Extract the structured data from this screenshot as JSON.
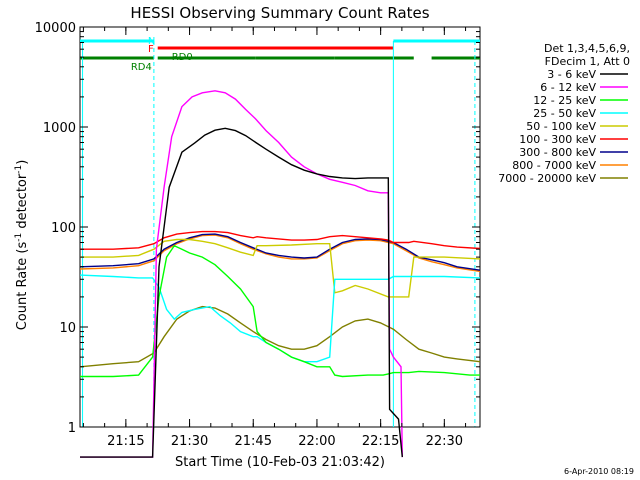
{
  "chart_data": {
    "type": "line",
    "title": "HESSI Observing Summary Count Rates",
    "xlabel": "Start Time (10-Feb-03 21:03:42)",
    "ylabel_main": "Count Rate (s",
    "ylabel_sup1": "-1",
    "ylabel_mid": " detector",
    "ylabel_sup2": "-1",
    "ylabel_end": ")",
    "footer": "6-Apr-2010 08:19",
    "y_scale": "log",
    "ylim": [
      1,
      10000
    ],
    "xlim": [
      21.07,
      22.64
    ],
    "x_ticks": [
      {
        "label": "21:15",
        "t": 21.25
      },
      {
        "label": "21:30",
        "t": 21.5
      },
      {
        "label": "21:45",
        "t": 21.75
      },
      {
        "label": "22:00",
        "t": 22.0
      },
      {
        "label": "22:15",
        "t": 22.25
      },
      {
        "label": "22:30",
        "t": 22.5
      }
    ],
    "y_ticks": [
      {
        "label": "1",
        "v": 1
      },
      {
        "label": "10",
        "v": 10
      },
      {
        "label": "100",
        "v": 100
      },
      {
        "label": "1000",
        "v": 1000
      },
      {
        "label": "10000",
        "v": 10000
      }
    ],
    "legend_header": [
      "Det 1,3,4,5,6,9,",
      "FDecim 1, Att 0"
    ],
    "legend_placement": "right",
    "series": [
      {
        "name": "3 - 6 keV",
        "color": "#000000",
        "points": [
          [
            21.07,
            0
          ],
          [
            21.355,
            0
          ],
          [
            21.38,
            40
          ],
          [
            21.42,
            250
          ],
          [
            21.47,
            560
          ],
          [
            21.52,
            690
          ],
          [
            21.56,
            830
          ],
          [
            21.6,
            930
          ],
          [
            21.64,
            970
          ],
          [
            21.68,
            920
          ],
          [
            21.72,
            820
          ],
          [
            21.76,
            700
          ],
          [
            21.8,
            600
          ],
          [
            21.85,
            500
          ],
          [
            21.9,
            420
          ],
          [
            21.95,
            370
          ],
          [
            22.0,
            340
          ],
          [
            22.05,
            320
          ],
          [
            22.1,
            310
          ],
          [
            22.15,
            305
          ],
          [
            22.2,
            310
          ],
          [
            22.25,
            310
          ],
          [
            22.28,
            310
          ],
          [
            22.285,
            1.5
          ],
          [
            22.32,
            1.2
          ],
          [
            22.335,
            0
          ]
        ]
      },
      {
        "name": "6 - 12 keV",
        "color": "#ff00ff",
        "points": [
          [
            21.07,
            0
          ],
          [
            21.355,
            0
          ],
          [
            21.37,
            60
          ],
          [
            21.4,
            250
          ],
          [
            21.43,
            800
          ],
          [
            21.47,
            1600
          ],
          [
            21.51,
            2000
          ],
          [
            21.55,
            2200
          ],
          [
            21.6,
            2300
          ],
          [
            21.64,
            2200
          ],
          [
            21.68,
            1900
          ],
          [
            21.72,
            1500
          ],
          [
            21.76,
            1200
          ],
          [
            21.8,
            920
          ],
          [
            21.85,
            700
          ],
          [
            21.9,
            500
          ],
          [
            21.95,
            400
          ],
          [
            22.0,
            340
          ],
          [
            22.05,
            300
          ],
          [
            22.1,
            280
          ],
          [
            22.15,
            260
          ],
          [
            22.2,
            230
          ],
          [
            22.25,
            220
          ],
          [
            22.28,
            220
          ],
          [
            22.285,
            6
          ],
          [
            22.3,
            5
          ],
          [
            22.33,
            4
          ],
          [
            22.335,
            0
          ]
        ]
      },
      {
        "name": "12 - 25 keV",
        "color": "#00ff00",
        "points": [
          [
            21.07,
            3.2
          ],
          [
            21.2,
            3.2
          ],
          [
            21.3,
            3.3
          ],
          [
            21.355,
            5
          ],
          [
            21.38,
            20
          ],
          [
            21.41,
            50
          ],
          [
            21.44,
            65
          ],
          [
            21.47,
            60
          ],
          [
            21.5,
            55
          ],
          [
            21.55,
            50
          ],
          [
            21.6,
            42
          ],
          [
            21.65,
            32
          ],
          [
            21.7,
            24
          ],
          [
            21.75,
            16
          ],
          [
            21.765,
            9
          ],
          [
            21.8,
            7
          ],
          [
            21.85,
            6
          ],
          [
            21.9,
            5
          ],
          [
            21.95,
            4.5
          ],
          [
            22.0,
            4
          ],
          [
            22.05,
            4
          ],
          [
            22.07,
            3.3
          ],
          [
            22.1,
            3.2
          ],
          [
            22.2,
            3.3
          ],
          [
            22.26,
            3.3
          ],
          [
            22.28,
            3.4
          ],
          [
            22.3,
            3.5
          ],
          [
            22.36,
            3.5
          ],
          [
            22.4,
            3.6
          ],
          [
            22.5,
            3.5
          ],
          [
            22.6,
            3.3
          ],
          [
            22.64,
            3.3
          ]
        ]
      },
      {
        "name": "25 - 50 keV",
        "color": "#00ffff",
        "points": [
          [
            21.07,
            33
          ],
          [
            21.2,
            32
          ],
          [
            21.3,
            31
          ],
          [
            21.355,
            31
          ],
          [
            21.38,
            25
          ],
          [
            21.41,
            15
          ],
          [
            21.44,
            12
          ],
          [
            21.47,
            14
          ],
          [
            21.52,
            15
          ],
          [
            21.58,
            16
          ],
          [
            21.62,
            13
          ],
          [
            21.66,
            11
          ],
          [
            21.7,
            9
          ],
          [
            21.75,
            8
          ],
          [
            21.765,
            8
          ],
          [
            21.8,
            7
          ],
          [
            21.85,
            6
          ],
          [
            21.9,
            5
          ],
          [
            21.95,
            4.5
          ],
          [
            22.0,
            4.5
          ],
          [
            22.05,
            5
          ],
          [
            22.07,
            30
          ],
          [
            22.1,
            30
          ],
          [
            22.2,
            30
          ],
          [
            22.28,
            30
          ],
          [
            22.3,
            32
          ],
          [
            22.4,
            32
          ],
          [
            22.5,
            32
          ],
          [
            22.64,
            31
          ]
        ]
      },
      {
        "name": "50 - 100 keV",
        "color": "#cccc00",
        "points": [
          [
            21.07,
            50
          ],
          [
            21.2,
            50
          ],
          [
            21.3,
            52
          ],
          [
            21.36,
            60
          ],
          [
            21.4,
            72
          ],
          [
            21.45,
            75
          ],
          [
            21.5,
            75
          ],
          [
            21.55,
            72
          ],
          [
            21.6,
            68
          ],
          [
            21.65,
            62
          ],
          [
            21.7,
            56
          ],
          [
            21.75,
            52
          ],
          [
            21.765,
            65
          ],
          [
            21.8,
            65
          ],
          [
            21.9,
            66
          ],
          [
            22.0,
            68
          ],
          [
            22.05,
            68
          ],
          [
            22.07,
            22
          ],
          [
            22.1,
            23
          ],
          [
            22.15,
            26
          ],
          [
            22.2,
            24
          ],
          [
            22.28,
            20
          ],
          [
            22.3,
            20
          ],
          [
            22.36,
            20
          ],
          [
            22.38,
            50
          ],
          [
            22.5,
            50
          ],
          [
            22.64,
            48
          ]
        ]
      },
      {
        "name": "100 - 300 keV",
        "color": "#ff0000",
        "points": [
          [
            21.07,
            60
          ],
          [
            21.2,
            60
          ],
          [
            21.3,
            62
          ],
          [
            21.36,
            68
          ],
          [
            21.4,
            78
          ],
          [
            21.45,
            85
          ],
          [
            21.5,
            88
          ],
          [
            21.55,
            90
          ],
          [
            21.6,
            90
          ],
          [
            21.65,
            88
          ],
          [
            21.7,
            82
          ],
          [
            21.75,
            78
          ],
          [
            21.765,
            80
          ],
          [
            21.8,
            78
          ],
          [
            21.85,
            76
          ],
          [
            21.9,
            74
          ],
          [
            21.95,
            74
          ],
          [
            22.0,
            75
          ],
          [
            22.05,
            80
          ],
          [
            22.1,
            82
          ],
          [
            22.15,
            80
          ],
          [
            22.2,
            78
          ],
          [
            22.25,
            76
          ],
          [
            22.28,
            74
          ],
          [
            22.3,
            70
          ],
          [
            22.36,
            70
          ],
          [
            22.38,
            72
          ],
          [
            22.45,
            68
          ],
          [
            22.5,
            65
          ],
          [
            22.55,
            63
          ],
          [
            22.64,
            61
          ]
        ]
      },
      {
        "name": "300 - 800 keV",
        "color": "#00008b",
        "points": [
          [
            21.07,
            40
          ],
          [
            21.2,
            41
          ],
          [
            21.3,
            43
          ],
          [
            21.36,
            48
          ],
          [
            21.4,
            60
          ],
          [
            21.45,
            70
          ],
          [
            21.5,
            78
          ],
          [
            21.55,
            84
          ],
          [
            21.6,
            85
          ],
          [
            21.65,
            80
          ],
          [
            21.7,
            70
          ],
          [
            21.75,
            62
          ],
          [
            21.8,
            55
          ],
          [
            21.85,
            52
          ],
          [
            21.9,
            50
          ],
          [
            21.95,
            49
          ],
          [
            22.0,
            50
          ],
          [
            22.05,
            60
          ],
          [
            22.1,
            70
          ],
          [
            22.15,
            75
          ],
          [
            22.2,
            76
          ],
          [
            22.25,
            75
          ],
          [
            22.3,
            70
          ],
          [
            22.35,
            60
          ],
          [
            22.4,
            50
          ],
          [
            22.45,
            47
          ],
          [
            22.5,
            44
          ],
          [
            22.55,
            40
          ],
          [
            22.64,
            37
          ]
        ]
      },
      {
        "name": "800 - 7000 keV",
        "color": "#ff8000",
        "points": [
          [
            21.07,
            38
          ],
          [
            21.2,
            39
          ],
          [
            21.3,
            41
          ],
          [
            21.36,
            46
          ],
          [
            21.4,
            58
          ],
          [
            21.45,
            68
          ],
          [
            21.5,
            76
          ],
          [
            21.55,
            82
          ],
          [
            21.6,
            83
          ],
          [
            21.65,
            78
          ],
          [
            21.7,
            68
          ],
          [
            21.75,
            60
          ],
          [
            21.8,
            54
          ],
          [
            21.85,
            50
          ],
          [
            21.9,
            48
          ],
          [
            21.95,
            48
          ],
          [
            22.0,
            49
          ],
          [
            22.05,
            58
          ],
          [
            22.1,
            68
          ],
          [
            22.15,
            73
          ],
          [
            22.2,
            74
          ],
          [
            22.25,
            73
          ],
          [
            22.3,
            68
          ],
          [
            22.35,
            58
          ],
          [
            22.4,
            49
          ],
          [
            22.45,
            45
          ],
          [
            22.5,
            42
          ],
          [
            22.55,
            39
          ],
          [
            22.64,
            36
          ]
        ]
      },
      {
        "name": "7000 - 20000 keV",
        "color": "#808000",
        "points": [
          [
            21.07,
            4
          ],
          [
            21.2,
            4.3
          ],
          [
            21.3,
            4.5
          ],
          [
            21.36,
            5.5
          ],
          [
            21.4,
            8
          ],
          [
            21.45,
            12
          ],
          [
            21.5,
            14.5
          ],
          [
            21.55,
            16
          ],
          [
            21.6,
            15.5
          ],
          [
            21.65,
            13.5
          ],
          [
            21.7,
            11
          ],
          [
            21.75,
            9
          ],
          [
            21.8,
            7.5
          ],
          [
            21.85,
            6.5
          ],
          [
            21.9,
            6
          ],
          [
            21.95,
            6
          ],
          [
            22.0,
            6.5
          ],
          [
            22.05,
            8
          ],
          [
            22.1,
            10
          ],
          [
            22.15,
            11.5
          ],
          [
            22.2,
            12
          ],
          [
            22.25,
            11
          ],
          [
            22.3,
            9.5
          ],
          [
            22.35,
            7.5
          ],
          [
            22.4,
            6
          ],
          [
            22.45,
            5.5
          ],
          [
            22.5,
            5
          ],
          [
            22.55,
            4.8
          ],
          [
            22.64,
            4.5
          ]
        ]
      }
    ],
    "flags": [
      {
        "label": "N",
        "color": "#00ffff",
        "row": 0,
        "segments": [
          [
            21.07,
            21.36
          ],
          [
            22.3,
            22.64
          ]
        ]
      },
      {
        "label": "F",
        "color": "#ff0000",
        "row": 1,
        "segments": [
          [
            21.375,
            22.3
          ]
        ]
      },
      {
        "label": "RD0",
        "color": "#008000",
        "row": 2,
        "segments": [
          [
            21.375,
            21.76
          ],
          [
            21.76,
            22.07
          ],
          [
            22.07,
            22.38
          ],
          [
            22.45,
            22.64
          ]
        ]
      },
      {
        "label": "RD4",
        "color": "#008000",
        "row": 2,
        "segments": [
          [
            21.07,
            21.36
          ]
        ]
      }
    ],
    "vertical_markers": [
      {
        "t": 21.08,
        "color": "#00ffff",
        "style": "solid"
      },
      {
        "t": 21.36,
        "color": "#00ffff",
        "style": "dashed"
      },
      {
        "t": 22.3,
        "color": "#00ffff",
        "style": "solid"
      },
      {
        "t": 22.62,
        "color": "#00ffff",
        "style": "dashed"
      }
    ],
    "grid": false
  }
}
